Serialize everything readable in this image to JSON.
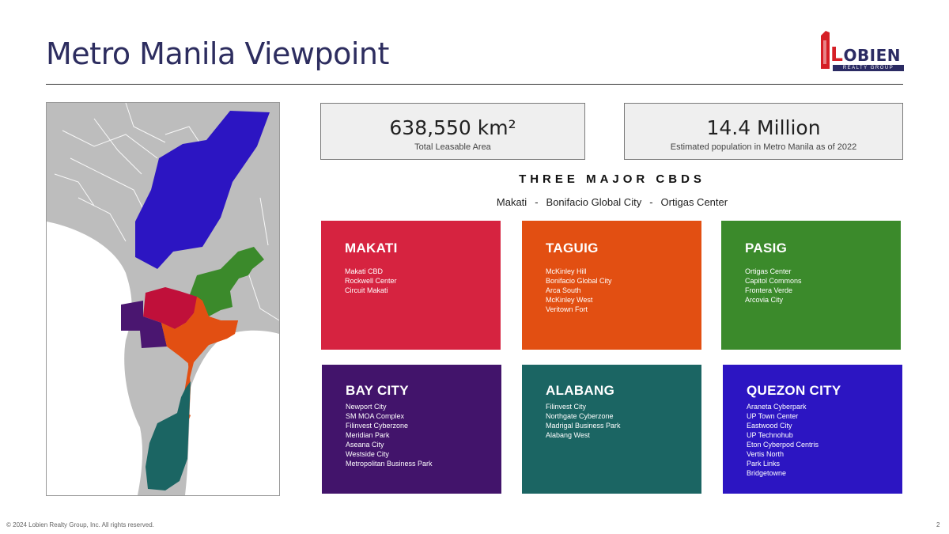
{
  "title": "Metro Manila Viewpoint",
  "logo": {
    "initial": "L",
    "rest": "OBIEN",
    "tagline": "REALTY GROUP"
  },
  "stats": [
    {
      "value": "638,550 km²",
      "label": "Total Leasable Area"
    },
    {
      "value": "14.4 Million",
      "label": "Estimated population in Metro Manila as of 2022"
    }
  ],
  "cbds": {
    "heading": "THREE MAJOR CBDS",
    "items": [
      "Makati",
      "Bonifacio Global City",
      "Ortigas Center"
    ],
    "separator": "-"
  },
  "cards": [
    {
      "title": "MAKATI",
      "color": "#d62340",
      "items": [
        "Makati CBD",
        "Rockwell Center",
        "Circuit Makati"
      ]
    },
    {
      "title": "TAGUIG",
      "color": "#e24f12",
      "items": [
        "McKinley Hill",
        "Bonifacio Global City",
        "Arca South",
        "McKinley West",
        "Veritown Fort"
      ]
    },
    {
      "title": "PASIG",
      "color": "#3b8a2b",
      "items": [
        "Ortigas Center",
        "Capitol Commons",
        "Frontera Verde",
        "Arcovia City"
      ]
    },
    {
      "title": "BAY CITY",
      "color": "#42146b",
      "items": [
        "Newport City",
        "SM MOA Complex",
        "Filinvest Cyberzone",
        "Meridian Park",
        "Aseana City",
        "Westside City",
        "Metropolitan Business Park"
      ]
    },
    {
      "title": "ALABANG",
      "color": "#1b6563",
      "items": [
        "Filinvest City",
        "Northgate Cyberzone",
        "Madrigal Business Park",
        "Alabang West"
      ]
    },
    {
      "title": "QUEZON CITY",
      "color": "#2c15c2",
      "items": [
        "Araneta Cyberpark",
        "UP Town Center",
        "Eastwood City",
        "UP Technohub",
        "Eton Cyberpod Centris",
        "Vertis North",
        "Park Links",
        "Bridgetowne"
      ]
    }
  ],
  "map_colors": {
    "land": "#bdbdbd",
    "water": "#ffffff",
    "quezon": "#2c15c2",
    "pasig": "#3b8a2b",
    "makati": "#c0103a",
    "bay": "#4a1670",
    "taguig": "#e24f12",
    "alabang": "#1b6563"
  },
  "footer": "© 2024 Lobien Realty Group, Inc. All rights reserved.",
  "page_number": "2"
}
